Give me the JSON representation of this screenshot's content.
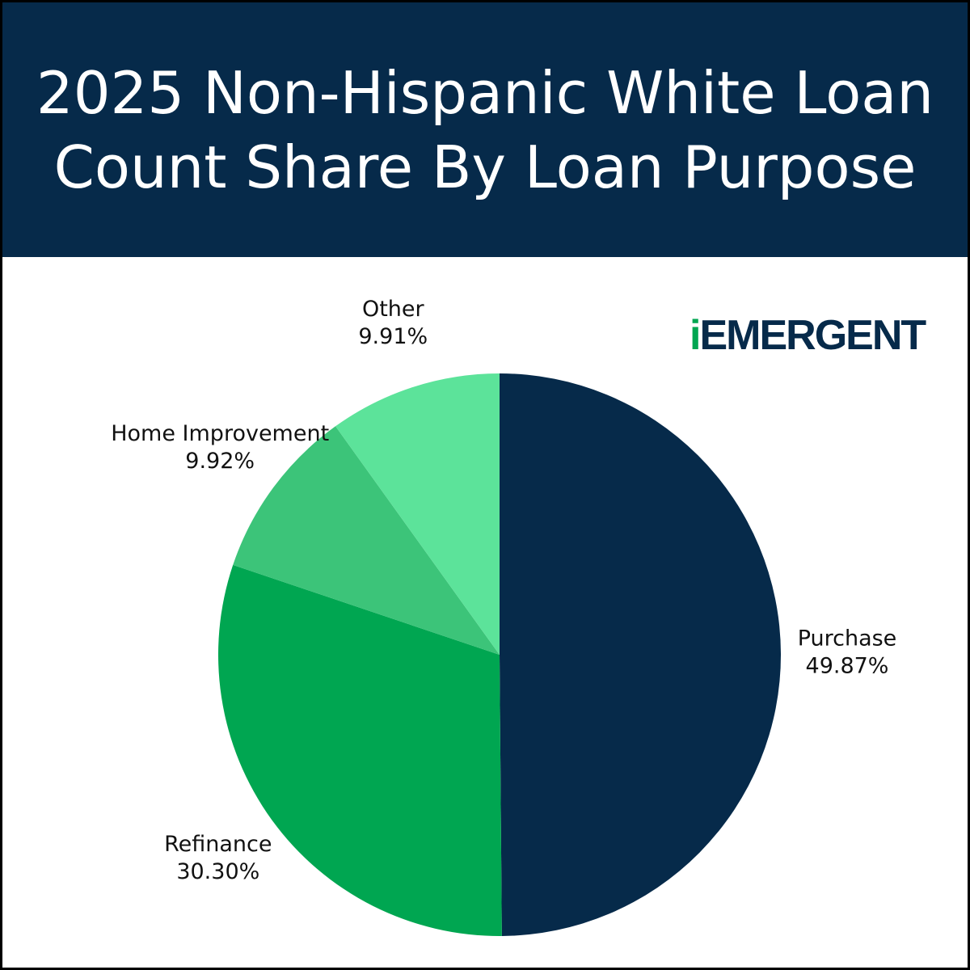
{
  "chart_data": {
    "type": "pie",
    "title": "2025 Non-Hispanic White Loan Count Share By Loan Purpose",
    "logo": "iEMERGENT",
    "categories": [
      "Purchase",
      "Refinance",
      "Home Improvement",
      "Other"
    ],
    "values": [
      49.87,
      30.3,
      9.92,
      9.91
    ],
    "value_labels": [
      "49.87%",
      "30.30%",
      "9.92%",
      "9.91%"
    ],
    "colors": [
      "#062a4a",
      "#00a651",
      "#3cc479",
      "#5ce39a"
    ]
  }
}
